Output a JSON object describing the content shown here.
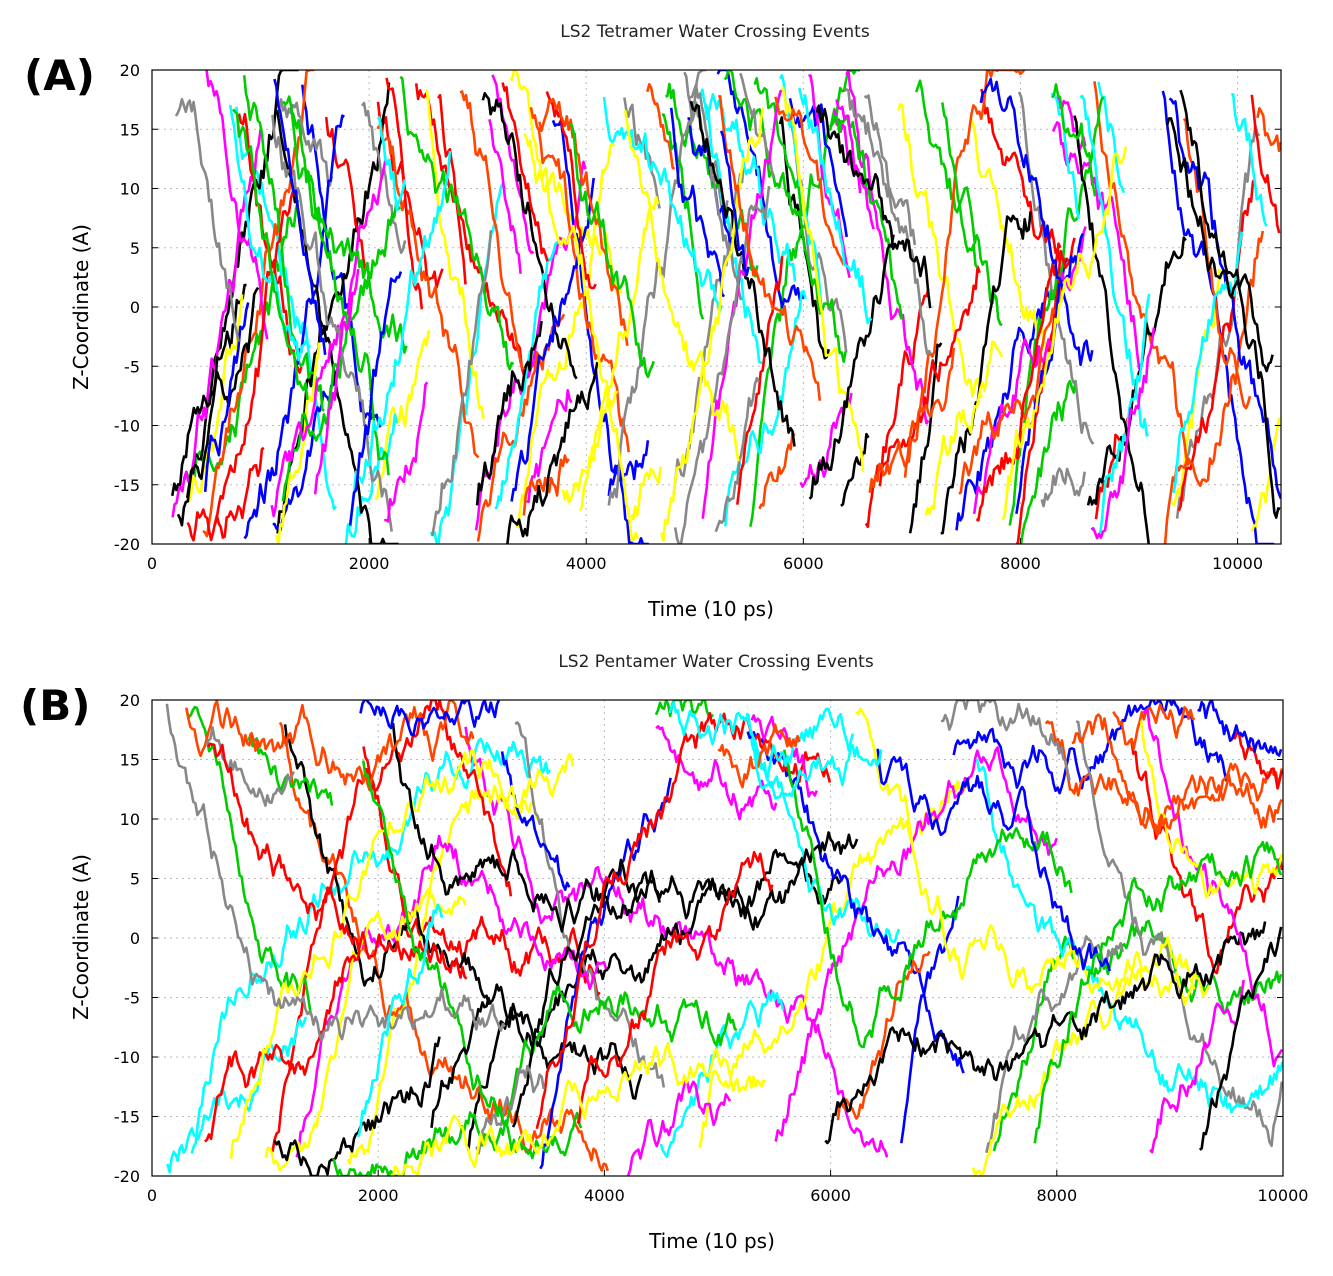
{
  "chart_data": [
    {
      "type": "line",
      "panel_label": "(A)",
      "title": "LS2 Tetramer Water Crossing Events",
      "xlabel": "Time (10 ps)",
      "ylabel": "Z-Coordinate (A)",
      "xlim": [
        0,
        10400
      ],
      "ylim": [
        -20,
        20
      ],
      "xticks": [
        0,
        2000,
        4000,
        6000,
        8000,
        10000
      ],
      "yticks": [
        -20,
        -15,
        -10,
        -5,
        0,
        5,
        10,
        15,
        20
      ],
      "grid": "dotted",
      "series_description": "hundreds of water-molecule z-trajectories, densely crossing the full -20..20 range throughout the simulation",
      "n_series": 170,
      "seed": 7,
      "crossing_rate": "high",
      "colors": [
        "#ff0000",
        "#00cc00",
        "#0000ff",
        "#ff00ff",
        "#00ffff",
        "#ffff00",
        "#000000",
        "#888888",
        "#ff4500"
      ]
    },
    {
      "type": "line",
      "panel_label": "(B)",
      "title": "LS2 Pentamer Water Crossing Events",
      "xlabel": "Time (10 ps)",
      "ylabel": "Z-Coordinate (A)",
      "xlim": [
        0,
        10000
      ],
      "ylim": [
        -20,
        20
      ],
      "xticks": [
        0,
        2000,
        4000,
        6000,
        8000,
        10000
      ],
      "yticks": [
        -20,
        -15,
        -10,
        -5,
        0,
        5,
        10,
        15,
        20
      ],
      "grid": "dotted",
      "series_description": "water-molecule z-trajectories, fewer crossings; many dwell near -15..-20, 15..20 and intermediate states 0..10",
      "n_series": 70,
      "seed": 13,
      "crossing_rate": "low",
      "colors": [
        "#ff0000",
        "#00cc00",
        "#0000ff",
        "#ff00ff",
        "#00ffff",
        "#ffff00",
        "#000000",
        "#888888",
        "#ff4500"
      ]
    }
  ]
}
